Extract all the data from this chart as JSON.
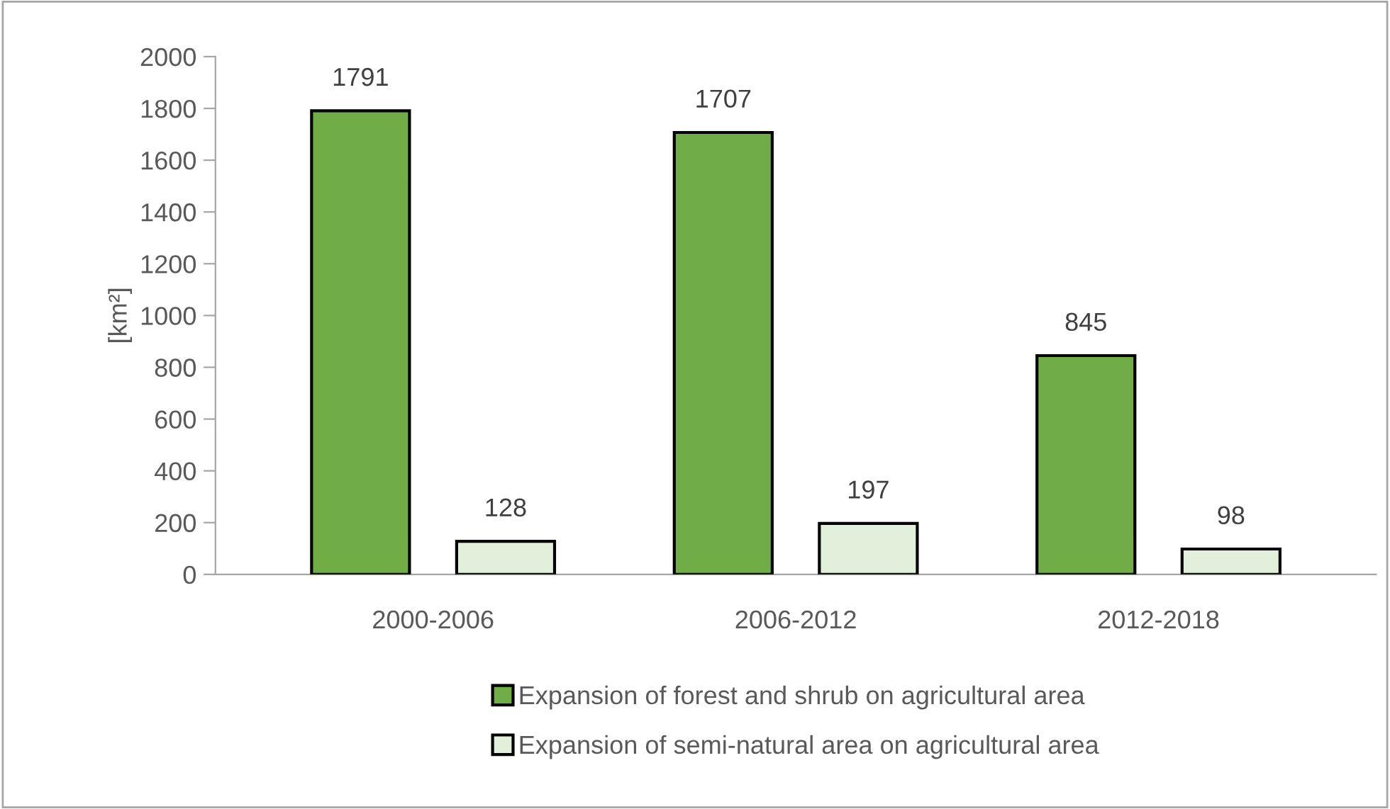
{
  "chart_data": {
    "type": "bar",
    "ylabel": "[km²]",
    "categories": [
      "2000-2006",
      "2006-2012",
      "2012-2018"
    ],
    "series": [
      {
        "name": "Expansion of forest and shrub on agricultural area",
        "color": "#70ad47",
        "values": [
          1791,
          1707,
          845
        ]
      },
      {
        "name": "Expansion of semi-natural area on agricultural area",
        "color": "#e2efda",
        "values": [
          128,
          197,
          98
        ]
      }
    ],
    "ylim": [
      0,
      2000
    ],
    "yticks": [
      0,
      200,
      400,
      600,
      800,
      1000,
      1200,
      1400,
      1600,
      1800,
      2000
    ],
    "data_labels": true,
    "grid": false,
    "legend": "bottom"
  }
}
